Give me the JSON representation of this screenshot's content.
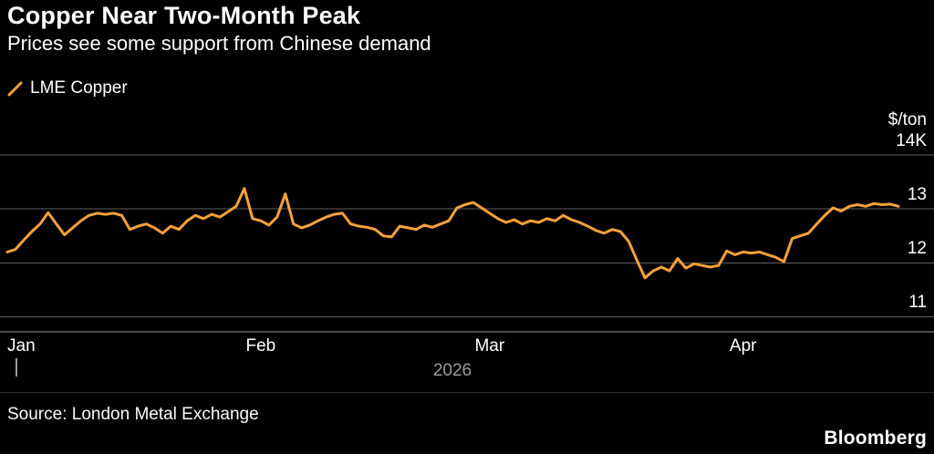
{
  "header": {
    "title": "Copper Near Two-Month Peak",
    "subtitle": "Prices see some support from Chinese demand"
  },
  "legend": {
    "label": "LME Copper"
  },
  "chart_data": {
    "type": "line",
    "title": "Copper Near Two-Month Peak",
    "subtitle": "Prices see some support from Chinese demand",
    "unit_label": "$/ton",
    "ylim": [
      10.7,
      14.85
    ],
    "grid": "horizontal",
    "legend_position": "top-left",
    "year_label": "2026",
    "yticks": [
      {
        "value": 14,
        "label": "14K"
      },
      {
        "value": 13,
        "label": "13"
      },
      {
        "value": 12,
        "label": "12"
      },
      {
        "value": 11,
        "label": "11"
      }
    ],
    "xticks": [
      {
        "index": 0,
        "label": "Jan"
      },
      {
        "index": 31,
        "label": "Feb"
      },
      {
        "index": 59,
        "label": "Mar"
      },
      {
        "index": 90,
        "label": "Apr"
      }
    ],
    "series": [
      {
        "name": "LME Copper",
        "color": "#F7A13B",
        "values": [
          12.2,
          12.25,
          12.42,
          12.58,
          12.72,
          12.93,
          12.72,
          12.52,
          12.65,
          12.78,
          12.88,
          12.92,
          12.9,
          12.92,
          12.88,
          12.62,
          12.68,
          12.72,
          12.65,
          12.55,
          12.68,
          12.62,
          12.78,
          12.88,
          12.82,
          12.9,
          12.85,
          12.95,
          13.05,
          13.38,
          12.82,
          12.78,
          12.7,
          12.85,
          13.28,
          12.72,
          12.65,
          12.7,
          12.78,
          12.85,
          12.9,
          12.92,
          12.72,
          12.68,
          12.66,
          12.62,
          12.5,
          12.48,
          12.68,
          12.65,
          12.62,
          12.7,
          12.66,
          12.72,
          12.78,
          13.02,
          13.08,
          13.12,
          13.02,
          12.92,
          12.82,
          12.75,
          12.8,
          12.72,
          12.78,
          12.75,
          12.82,
          12.78,
          12.88,
          12.8,
          12.75,
          12.68,
          12.6,
          12.55,
          12.62,
          12.58,
          12.4,
          12.05,
          11.72,
          11.85,
          11.92,
          11.85,
          12.08,
          11.9,
          11.98,
          11.95,
          11.92,
          11.95,
          12.22,
          12.15,
          12.2,
          12.18,
          12.2,
          12.15,
          12.1,
          12.02,
          12.45,
          12.5,
          12.55,
          12.72,
          12.88,
          13.02,
          12.96,
          13.05,
          13.08,
          13.05,
          13.1,
          13.08,
          13.09,
          13.05
        ]
      }
    ]
  },
  "footer": {
    "source": "Source: London Metal Exchange",
    "brand": "Bloomberg"
  }
}
